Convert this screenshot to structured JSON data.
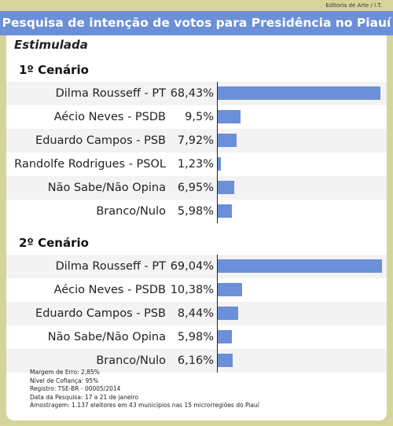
{
  "credit": "Editoria de Arte / I.T.",
  "title": "Pesquisa de intenção de votos para Presidência no Piauí",
  "subtitle": "Estimulada",
  "colors": {
    "banner": "#6b8fd8",
    "bar": "#6b8fd8",
    "background": "#d6d49a"
  },
  "chart_data": [
    {
      "type": "bar",
      "orientation": "horizontal",
      "title": "1º Cenário",
      "categories": [
        "Dilma Rousseff - PT",
        "Aécio Neves - PSDB",
        "Eduardo Campos - PSB",
        "Randolfe Rodrigues - PSOL",
        "Não Sabe/Não Opina",
        "Branco/Nulo"
      ],
      "values": [
        68.43,
        9.5,
        7.92,
        1.23,
        6.95,
        5.98
      ],
      "labels": [
        "68,43%",
        "9,5%",
        "7,92%",
        "1,23%",
        "6,95%",
        "5,98%"
      ],
      "xlim": [
        0,
        70
      ]
    },
    {
      "type": "bar",
      "orientation": "horizontal",
      "title": "2º Cenário",
      "categories": [
        "Dilma Rousseff - PT",
        "Aécio Neves - PSDB",
        "Eduardo Campos - PSB",
        "Não Sabe/Não Opina",
        "Branco/Nulo"
      ],
      "values": [
        69.04,
        10.38,
        8.44,
        5.98,
        6.16
      ],
      "labels": [
        "69,04%",
        "10,38%",
        "8,44%",
        "5,98%",
        "6,16%"
      ],
      "xlim": [
        0,
        70
      ]
    }
  ],
  "notes": [
    "Margem de Erro: 2,85%",
    "Nível de Cofiança: 95%",
    "Registro: TSE-BR - 00005/2014",
    "Data da Pesquisa: 17 a 21 de janeiro",
    "Amostragem: 1.137 eleitores em 43 municípios nas 15 microrregiões do Piauí"
  ]
}
